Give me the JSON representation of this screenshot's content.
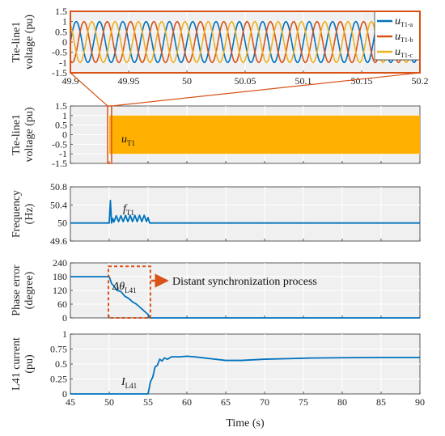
{
  "chart_data": [
    {
      "type": "line",
      "ylabel": [
        "Tie-line1",
        "voltage (pu)"
      ],
      "xlim": [
        49.9,
        50.2
      ],
      "ylim": [
        -1.5,
        1.5
      ],
      "xticks": [
        "49.9",
        "49.95",
        "50",
        "50.05",
        "50.1",
        "50.15",
        "50.2"
      ],
      "yticks": [
        "1.5",
        "1",
        "0.5",
        "0",
        "-0.5",
        "-1",
        "-1.5"
      ],
      "grid": true,
      "legend_position": "top-right",
      "series": [
        {
          "name": "uT1-a",
          "label_main": "u",
          "label_sub": "T1-a",
          "color": "#0072BD",
          "amplitude": 1.0,
          "frequency_hz": 50,
          "phase_deg": 0
        },
        {
          "name": "uT1-b",
          "label_main": "u",
          "label_sub": "T1-b",
          "color": "#D95319",
          "amplitude": 1.0,
          "frequency_hz": 50,
          "phase_deg": -120
        },
        {
          "name": "uT1-c",
          "label_main": "u",
          "label_sub": "T1-c",
          "color": "#EDB120",
          "amplitude": 1.0,
          "frequency_hz": 50,
          "phase_deg": 120
        }
      ]
    },
    {
      "type": "area",
      "ylabel": [
        "Tie-line1",
        "voltage (pu)"
      ],
      "xlim": [
        45,
        90
      ],
      "ylim": [
        -1.5,
        1.5
      ],
      "yticks": [
        "1.5",
        "1",
        "0.5",
        "0",
        "-0.5",
        "-1",
        "-1.5"
      ],
      "grid": true,
      "annotation_main": "u",
      "annotation_sub": "T1",
      "series": [
        {
          "name": "uT1",
          "color": "#FFB000",
          "envelope": [
            -1.0,
            1.0
          ]
        }
      ],
      "zoom_box_x": [
        49.9,
        50.2
      ]
    },
    {
      "type": "line",
      "ylabel": [
        "Frequency",
        "(Hz)"
      ],
      "xlim": [
        45,
        90
      ],
      "ylim": [
        49.6,
        50.8
      ],
      "yticks": [
        "50.8",
        "50.4",
        "50",
        "49.6"
      ],
      "grid": true,
      "annotation_main": "f",
      "annotation_sub": "T1",
      "series": [
        {
          "name": "fT1",
          "color": "#0072BD",
          "x": [
            45,
            50,
            50.15,
            50.3,
            50.45,
            50.6,
            50.9,
            51.2,
            51.5,
            51.8,
            52.1,
            52.4,
            52.7,
            53.0,
            53.3,
            53.6,
            53.9,
            54.2,
            54.5,
            54.8,
            55.0,
            55.2,
            90
          ],
          "y": [
            50.0,
            50.0,
            50.5,
            50.0,
            50.1,
            50.02,
            50.16,
            50.03,
            50.16,
            50.03,
            50.17,
            50.03,
            50.17,
            50.03,
            50.17,
            50.03,
            50.17,
            50.03,
            50.17,
            50.03,
            50.12,
            50.0,
            50.0
          ]
        }
      ]
    },
    {
      "type": "line",
      "ylabel": [
        "Phase error",
        "(degree)"
      ],
      "xlim": [
        45,
        90
      ],
      "ylim": [
        0,
        240
      ],
      "yticks": [
        "240",
        "180",
        "120",
        "60",
        "0"
      ],
      "grid": true,
      "annotation_main": "Δθ",
      "annotation_sub": "L41",
      "annotation_process": "Distant synchronization process",
      "process_box_x": [
        49.9,
        55.3
      ],
      "process_box_y": [
        0,
        225
      ],
      "arrow_color": "#D95319",
      "series": [
        {
          "name": "ΔθL41",
          "color": "#0072BD",
          "x": [
            45,
            50,
            50.3,
            50.6,
            51,
            51.5,
            52,
            52.5,
            53,
            53.5,
            54,
            54.5,
            55,
            55.2,
            90
          ],
          "y": [
            180,
            180,
            150,
            140,
            120,
            115,
            95,
            85,
            70,
            60,
            45,
            30,
            15,
            0,
            0
          ]
        }
      ]
    },
    {
      "type": "line",
      "xlabel": "Time (s)",
      "ylabel": [
        "L41 current",
        "(pu)"
      ],
      "xlim": [
        45,
        90
      ],
      "ylim": [
        0,
        1
      ],
      "xticks": [
        "45",
        "50",
        "55",
        "60",
        "65",
        "70",
        "75",
        "80",
        "85",
        "90"
      ],
      "yticks": [
        "1",
        "0.75",
        "0.5",
        "0.25",
        "0"
      ],
      "grid": true,
      "annotation_main": "I",
      "annotation_sub": "L41",
      "series": [
        {
          "name": "IL41",
          "color": "#0072BD",
          "x": [
            45,
            55.0,
            55.3,
            55.6,
            55.9,
            56.2,
            56.5,
            56.8,
            57.1,
            57.5,
            58,
            59,
            60,
            61,
            63,
            65,
            67,
            70,
            73,
            76,
            80,
            85,
            90
          ],
          "y": [
            0,
            0,
            0.2,
            0.28,
            0.45,
            0.48,
            0.58,
            0.55,
            0.6,
            0.58,
            0.62,
            0.62,
            0.63,
            0.62,
            0.59,
            0.56,
            0.56,
            0.58,
            0.59,
            0.6,
            0.605,
            0.61,
            0.61
          ]
        }
      ]
    }
  ]
}
